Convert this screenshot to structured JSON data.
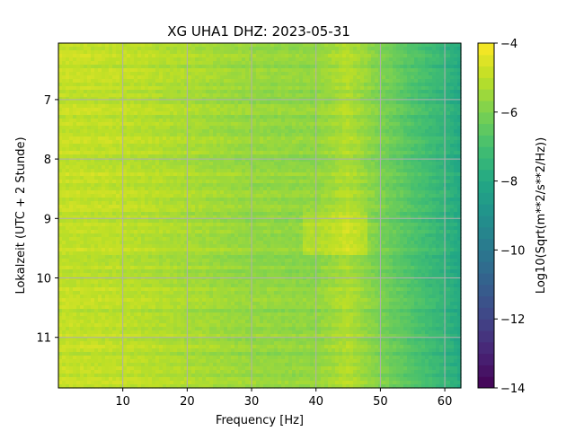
{
  "chart_data": {
    "type": "heatmap",
    "title": "XG UHA1  DHZ: 2023-05-31",
    "xlabel": "Frequency [Hz]",
    "ylabel": "Lokalzeit (UTC + 2 Stunde)",
    "xlim": [
      0,
      62.5
    ],
    "ylim_top_to_bottom": [
      6.05,
      11.85
    ],
    "xticks": [
      10,
      20,
      30,
      40,
      50,
      60
    ],
    "yticks": [
      7,
      8,
      9,
      10,
      11
    ],
    "grid": true,
    "colorbar": {
      "label": "Log10(Sqrt(m**2/s**2/Hz))",
      "range": [
        -14,
        -4
      ],
      "ticks": [
        -4,
        -6,
        -8,
        -10,
        -12,
        -14
      ],
      "colormap": "viridis"
    },
    "value_profile": {
      "description_frequency_hz": [
        0,
        10,
        20,
        30,
        40,
        45,
        50,
        55,
        60,
        62.5
      ],
      "typical_log10_amplitude": [
        -4.9,
        -5.0,
        -5.3,
        -5.6,
        -5.7,
        -5.2,
        -6.0,
        -6.8,
        -7.5,
        -8.0
      ]
    }
  }
}
